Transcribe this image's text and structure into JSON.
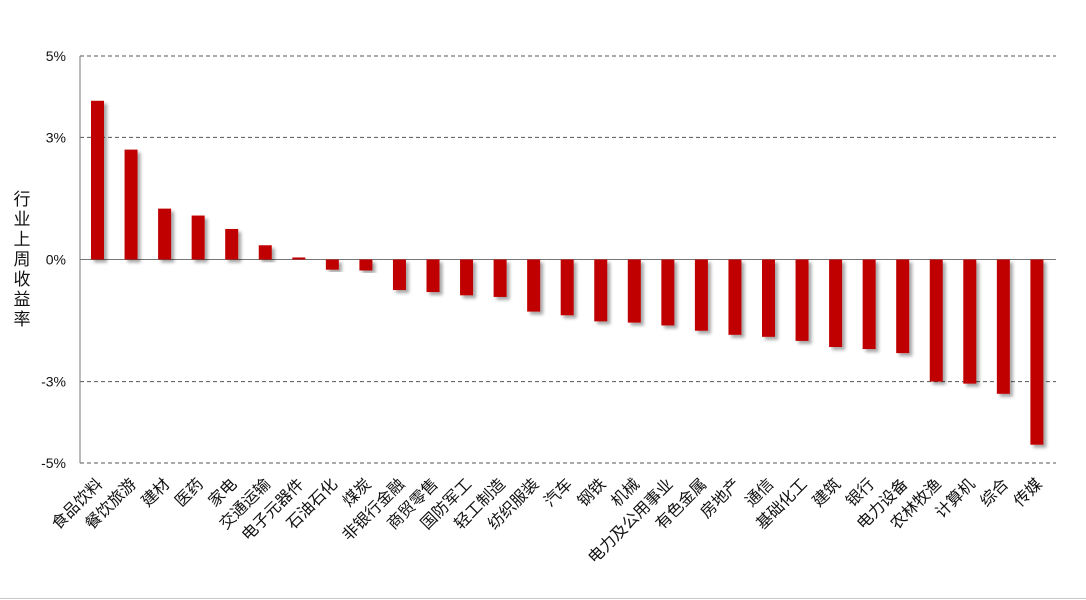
{
  "chart_data": {
    "type": "bar",
    "ylabel": "行业上周收益率",
    "yticks": [
      "5%",
      "3%",
      "0%",
      "-3%",
      "-5%"
    ],
    "ytick_values": [
      5,
      3,
      0,
      -3,
      -5
    ],
    "ylim": [
      -5,
      5
    ],
    "grid": "dashed-horizontal",
    "bar_color": "#C00000",
    "categories": [
      "食品饮料",
      "餐饮旅游",
      "建材",
      "医药",
      "家电",
      "交通运输",
      "电子元器件",
      "石油石化",
      "煤炭",
      "非银行金融",
      "商贸零售",
      "国防军工",
      "轻工制造",
      "纺织服装",
      "汽车",
      "钢铁",
      "机械",
      "电力及公用事业",
      "有色金属",
      "房地产",
      "通信",
      "基础化工",
      "建筑",
      "银行",
      "电力设备",
      "农林牧渔",
      "计算机",
      "综合",
      "传媒"
    ],
    "values": [
      3.9,
      2.7,
      1.25,
      1.08,
      0.75,
      0.35,
      0.05,
      -0.25,
      -0.27,
      -0.75,
      -0.8,
      -0.88,
      -0.92,
      -1.28,
      -1.37,
      -1.52,
      -1.55,
      -1.62,
      -1.75,
      -1.85,
      -1.9,
      -2.0,
      -2.15,
      -2.2,
      -2.3,
      -3.0,
      -3.05,
      -3.3,
      -4.55
    ]
  }
}
